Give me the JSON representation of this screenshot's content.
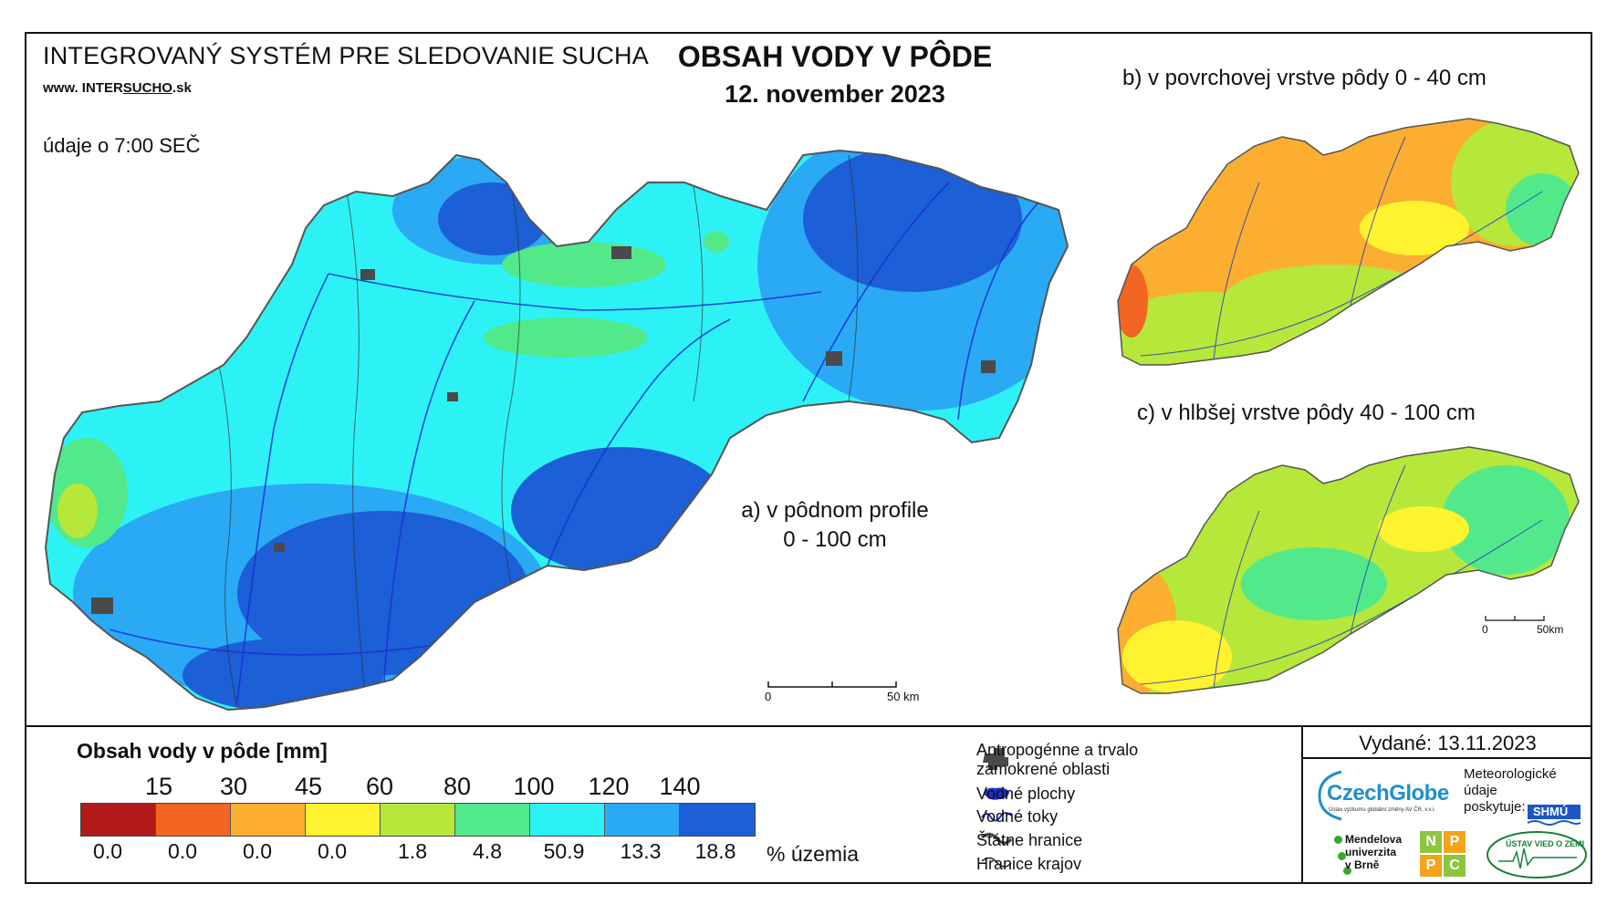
{
  "header": {
    "system_title": "INTEGROVANÝ SYSTÉM PRE SLEDOVANIE SUCHA",
    "website_prefix": "www. INTER",
    "website_mid": "SUCHO",
    "website_suffix": ".sk",
    "data_time": "údaje o 7:00 SEČ",
    "title": "OBSAH VODY V PÔDE",
    "date": "12. november 2023"
  },
  "maps": {
    "a": {
      "label_line1": "a) v pôdnom profile",
      "label_line2": "0 - 100 cm",
      "scale_zero": "0",
      "scale_end": "50 km"
    },
    "b": {
      "label": "b) v povrchovej vrstve pôdy 0 - 40 cm"
    },
    "c": {
      "label": "c) v hlbšej vrstve pôdy 40 - 100 cm",
      "scale_zero": "0",
      "scale_end": "50km"
    }
  },
  "legend": {
    "title": "Obsah vody v pôde  [mm]",
    "thresholds": [
      "15",
      "30",
      "45",
      "60",
      "80",
      "100",
      "120",
      "140"
    ],
    "class_colors": [
      "#b31a1a",
      "#f26522",
      "#fbae2f",
      "#fff22e",
      "#b5e83a",
      "#52e98a",
      "#2df2f5",
      "#2aa9f5",
      "#1c5fd6"
    ],
    "percent_values": [
      "0.0",
      "0.0",
      "0.0",
      "0.0",
      "1.8",
      "4.8",
      "50.9",
      "13.3",
      "18.8"
    ],
    "percent_unit": "% územia"
  },
  "key": {
    "anthropogenic": "Antropogénne a trvalo zamokrené oblasti",
    "water_bodies": "Vodné plochy",
    "rivers": "Vodné toky",
    "state_border": "Štátne hranice",
    "regions": "Hranice krajov"
  },
  "footer": {
    "issued": "Vydané: 13.11.2023",
    "czechglobe": "CzechGlobe",
    "czechglobe_sub": "Ústav výzkumu globální změny AV ČR, v.v.i.",
    "met_data": "Meteorologické údaje poskytuje:",
    "shmu": "SHMÚ",
    "mendel_line1": "Mendelova",
    "mendel_line2": "univerzita",
    "mendel_line3": "v Brně",
    "nppc_letters": [
      "N",
      "P",
      "P",
      "C"
    ],
    "uvz": "ÚSTAV VIED O ZEMI"
  },
  "colors": {
    "river": "#1a2fd6",
    "border": "#666666",
    "urban": "#4a4a4a"
  }
}
